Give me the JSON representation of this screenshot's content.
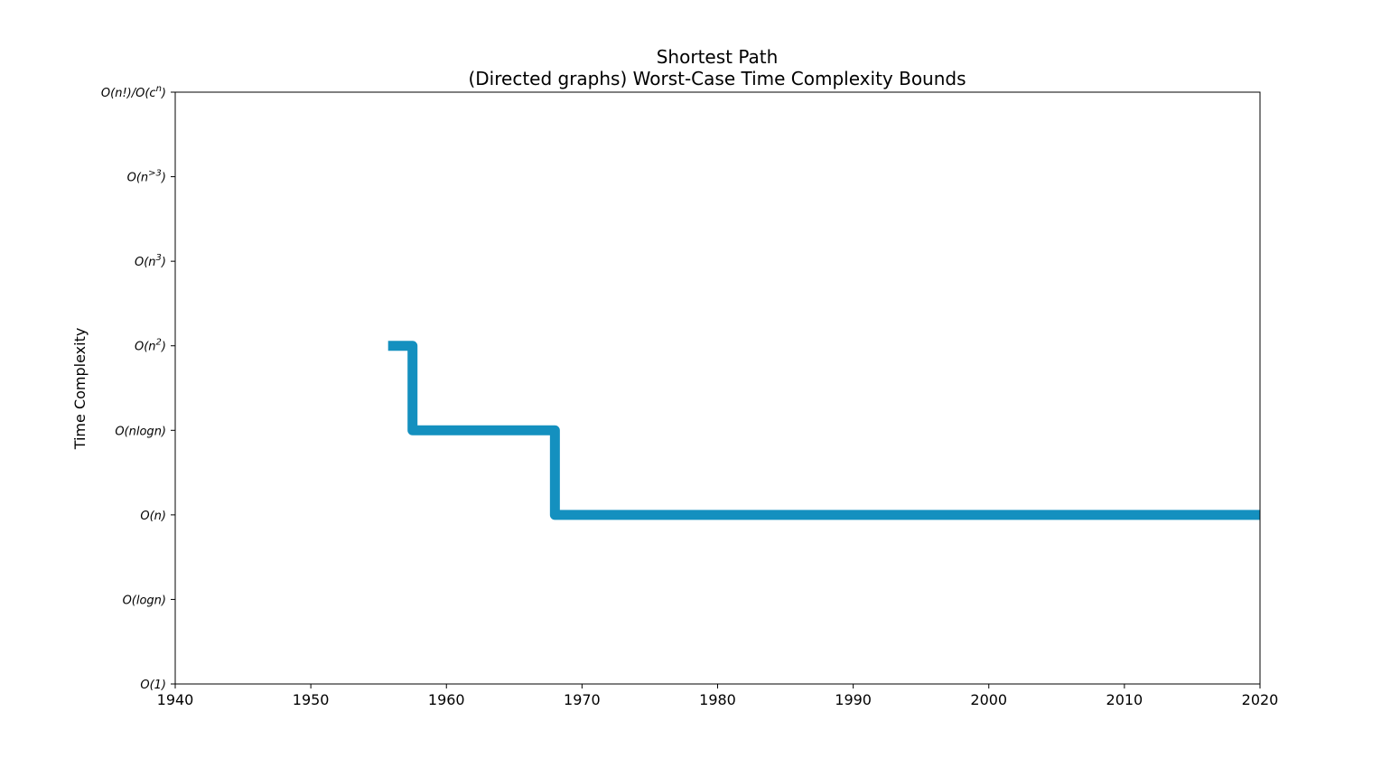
{
  "chart_data": {
    "type": "line",
    "title": "Shortest Path",
    "subtitle": "(Directed graphs) Worst-Case Time Complexity Bounds",
    "xlabel": "",
    "ylabel": "Time Complexity",
    "xlim": [
      1940,
      2020
    ],
    "x_ticks": [
      "1940",
      "1950",
      "1960",
      "1970",
      "1980",
      "1990",
      "2000",
      "2010",
      "2020"
    ],
    "y_categories": [
      {
        "base": "O(1)"
      },
      {
        "base": "O(logn)"
      },
      {
        "base": "O(n)"
      },
      {
        "base": "O(nlogn)"
      },
      {
        "base": "O(n",
        "sup": "2",
        "tail": ")"
      },
      {
        "base": "O(n",
        "sup": "3",
        "tail": ")"
      },
      {
        "base": "O(n",
        "sup": ">3",
        "tail": ")"
      },
      {
        "base": "O(n!)/O(c",
        "sup": "n",
        "tail": ")"
      }
    ],
    "grid": false,
    "step": "post",
    "series": [
      {
        "color": "#1490bf",
        "x": [
          1955.7,
          1957.5,
          1968,
          2020
        ],
        "y": [
          "O(n^2)",
          "O(nlogn)",
          "O(n)",
          "O(n)"
        ],
        "y_index": [
          4,
          3,
          2,
          2
        ]
      }
    ]
  }
}
